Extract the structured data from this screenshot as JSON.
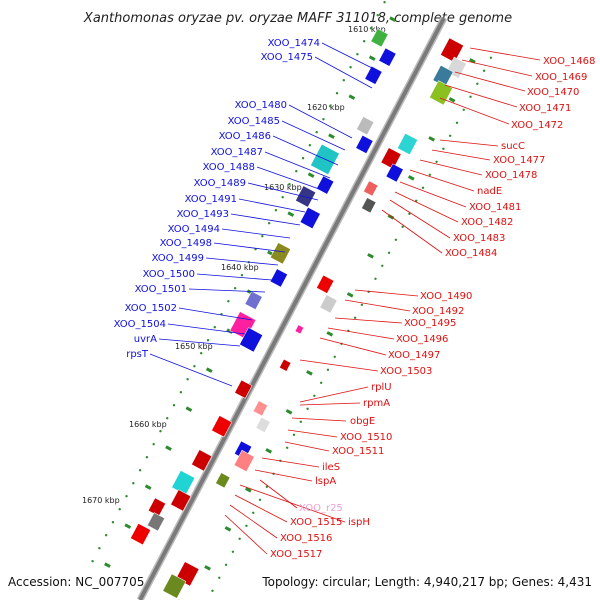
{
  "title": "Xanthomonas oryzae pv. oryzae MAFF 311018, complete genome",
  "accession": "Accession: NC_007705",
  "summary": "Topology: circular; Length: 4,940,217 bp; Genes: 4,431",
  "colors": {
    "left_label": "#1010dd",
    "right_label": "#dd1010",
    "pink_label": "#f0a0d0",
    "backbone": "#888888",
    "tick": "#2e8b2e"
  },
  "kbp_marks": [
    "1610 kbp",
    "1620 kbp",
    "1630 kbp",
    "1640 kbp",
    "1650 kbp",
    "1660 kbp",
    "1670 kbp"
  ],
  "left_labels": [
    "XOO_1474",
    "XOO_1475",
    "XOO_1480",
    "XOO_1485",
    "XOO_1486",
    "XOO_1487",
    "XOO_1488",
    "XOO_1489",
    "XOO_1491",
    "XOO_1493",
    "XOO_1494",
    "XOO_1498",
    "XOO_1499",
    "XOO_1500",
    "XOO_1501",
    "XOO_1502",
    "XOO_1504",
    "uvrA",
    "rpsT"
  ],
  "right_labels": [
    "XOO_1468",
    "XOO_1469",
    "XOO_1470",
    "XOO_1471",
    "XOO_1472",
    "sucC",
    "XOO_1477",
    "XOO_1478",
    "nadE",
    "XOO_1481",
    "XOO_1482",
    "XOO_1483",
    "XOO_1484",
    "XOO_1490",
    "XOO_1492",
    "XOO_1495",
    "XOO_1496",
    "XOO_1497",
    "XOO_1503",
    "rplU",
    "rpmA",
    "obgE",
    "XOO_1510",
    "XOO_1511",
    "ileS",
    "lspA",
    "XOO_r25",
    "ispH",
    "XOO_1515",
    "XOO_1516",
    "XOO_1517"
  ]
}
